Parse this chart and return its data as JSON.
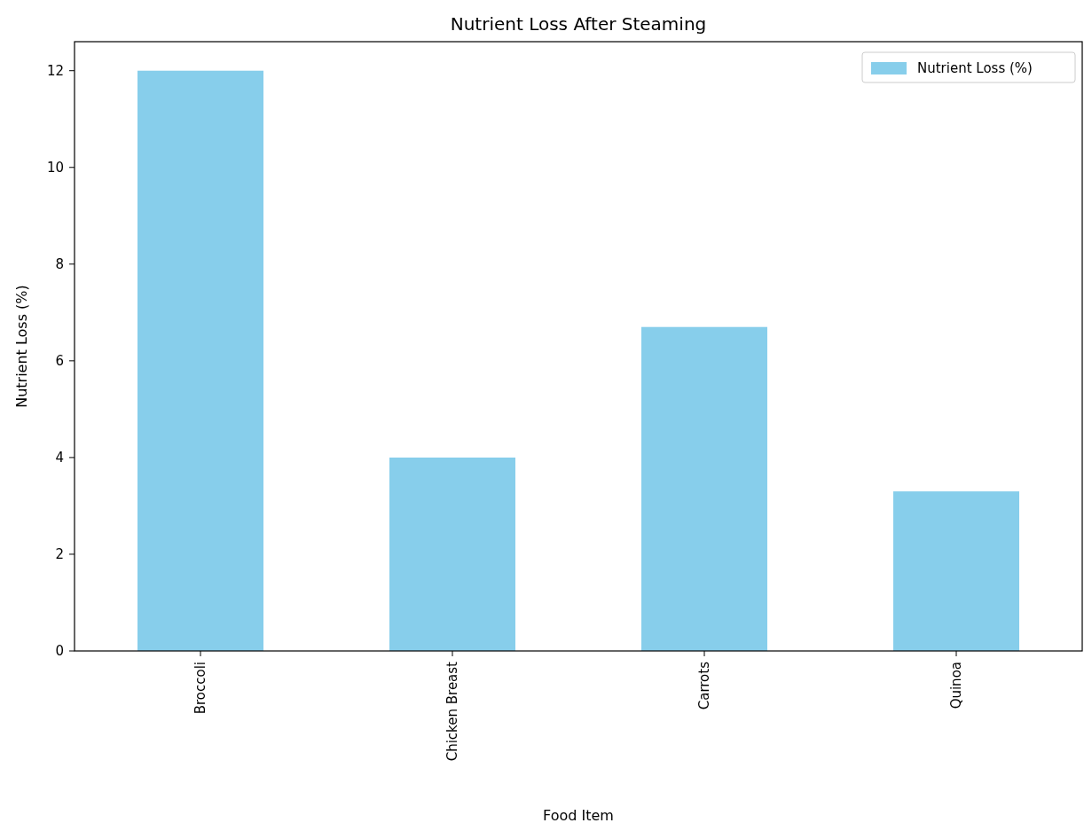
{
  "chart_data": {
    "type": "bar",
    "title": "Nutrient Loss After Steaming",
    "xlabel": "Food Item",
    "ylabel": "Nutrient Loss (%)",
    "categories": [
      "Broccoli",
      "Chicken Breast",
      "Carrots",
      "Quinoa"
    ],
    "series": [
      {
        "name": "Nutrient Loss (%)",
        "color": "#87ceeb",
        "values": [
          12,
          4,
          6.7,
          3.3
        ]
      }
    ],
    "ylim": [
      0,
      12.6
    ],
    "yticks": [
      0,
      2,
      4,
      6,
      8,
      10,
      12
    ],
    "legend": "top right",
    "grid": false
  }
}
